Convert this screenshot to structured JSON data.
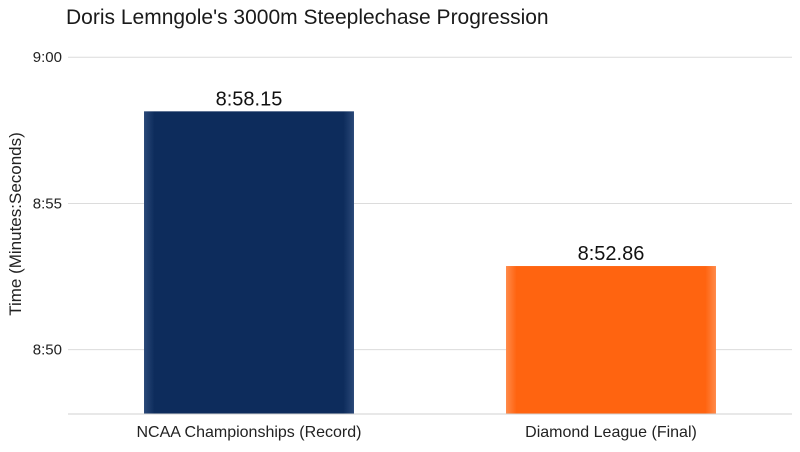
{
  "chart_data": {
    "type": "bar",
    "title": "Doris Lemngole's 3000m Steeplechase Progression",
    "ylabel": "Time (Minutes:Seconds)",
    "xlabel": "",
    "categories": [
      "NCAA Championships (Record)",
      "Diamond League (Final)"
    ],
    "values": [
      538.15,
      532.86
    ],
    "value_labels": [
      "8:58.15",
      "8:52.86"
    ],
    "value_unit": "seconds",
    "colors": [
      "#0d2c5c",
      "#ff6410"
    ],
    "ylim": [
      527.8,
      541
    ],
    "yticks": [
      530,
      535,
      540
    ],
    "ytick_labels": [
      "8:50",
      "8:55",
      "9:00"
    ],
    "grid": true,
    "legend": "none"
  }
}
